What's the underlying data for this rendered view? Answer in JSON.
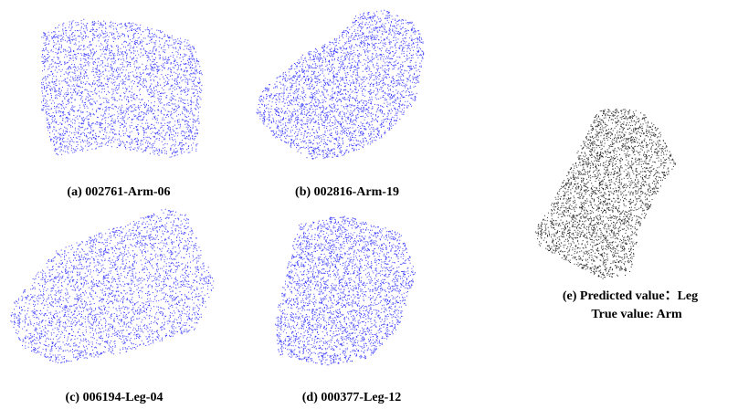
{
  "panels": [
    {
      "caption": [
        "(a) 002761-Arm-06"
      ]
    },
    {
      "caption": [
        "(b) 002816-Arm-19"
      ]
    },
    {
      "caption": [
        "(c) 006194-Leg-04"
      ]
    },
    {
      "caption": [
        "(d) 000377-Leg-12"
      ]
    },
    {
      "caption": [
        "(e) Predicted value：Leg",
        "True value: Arm"
      ]
    }
  ]
}
